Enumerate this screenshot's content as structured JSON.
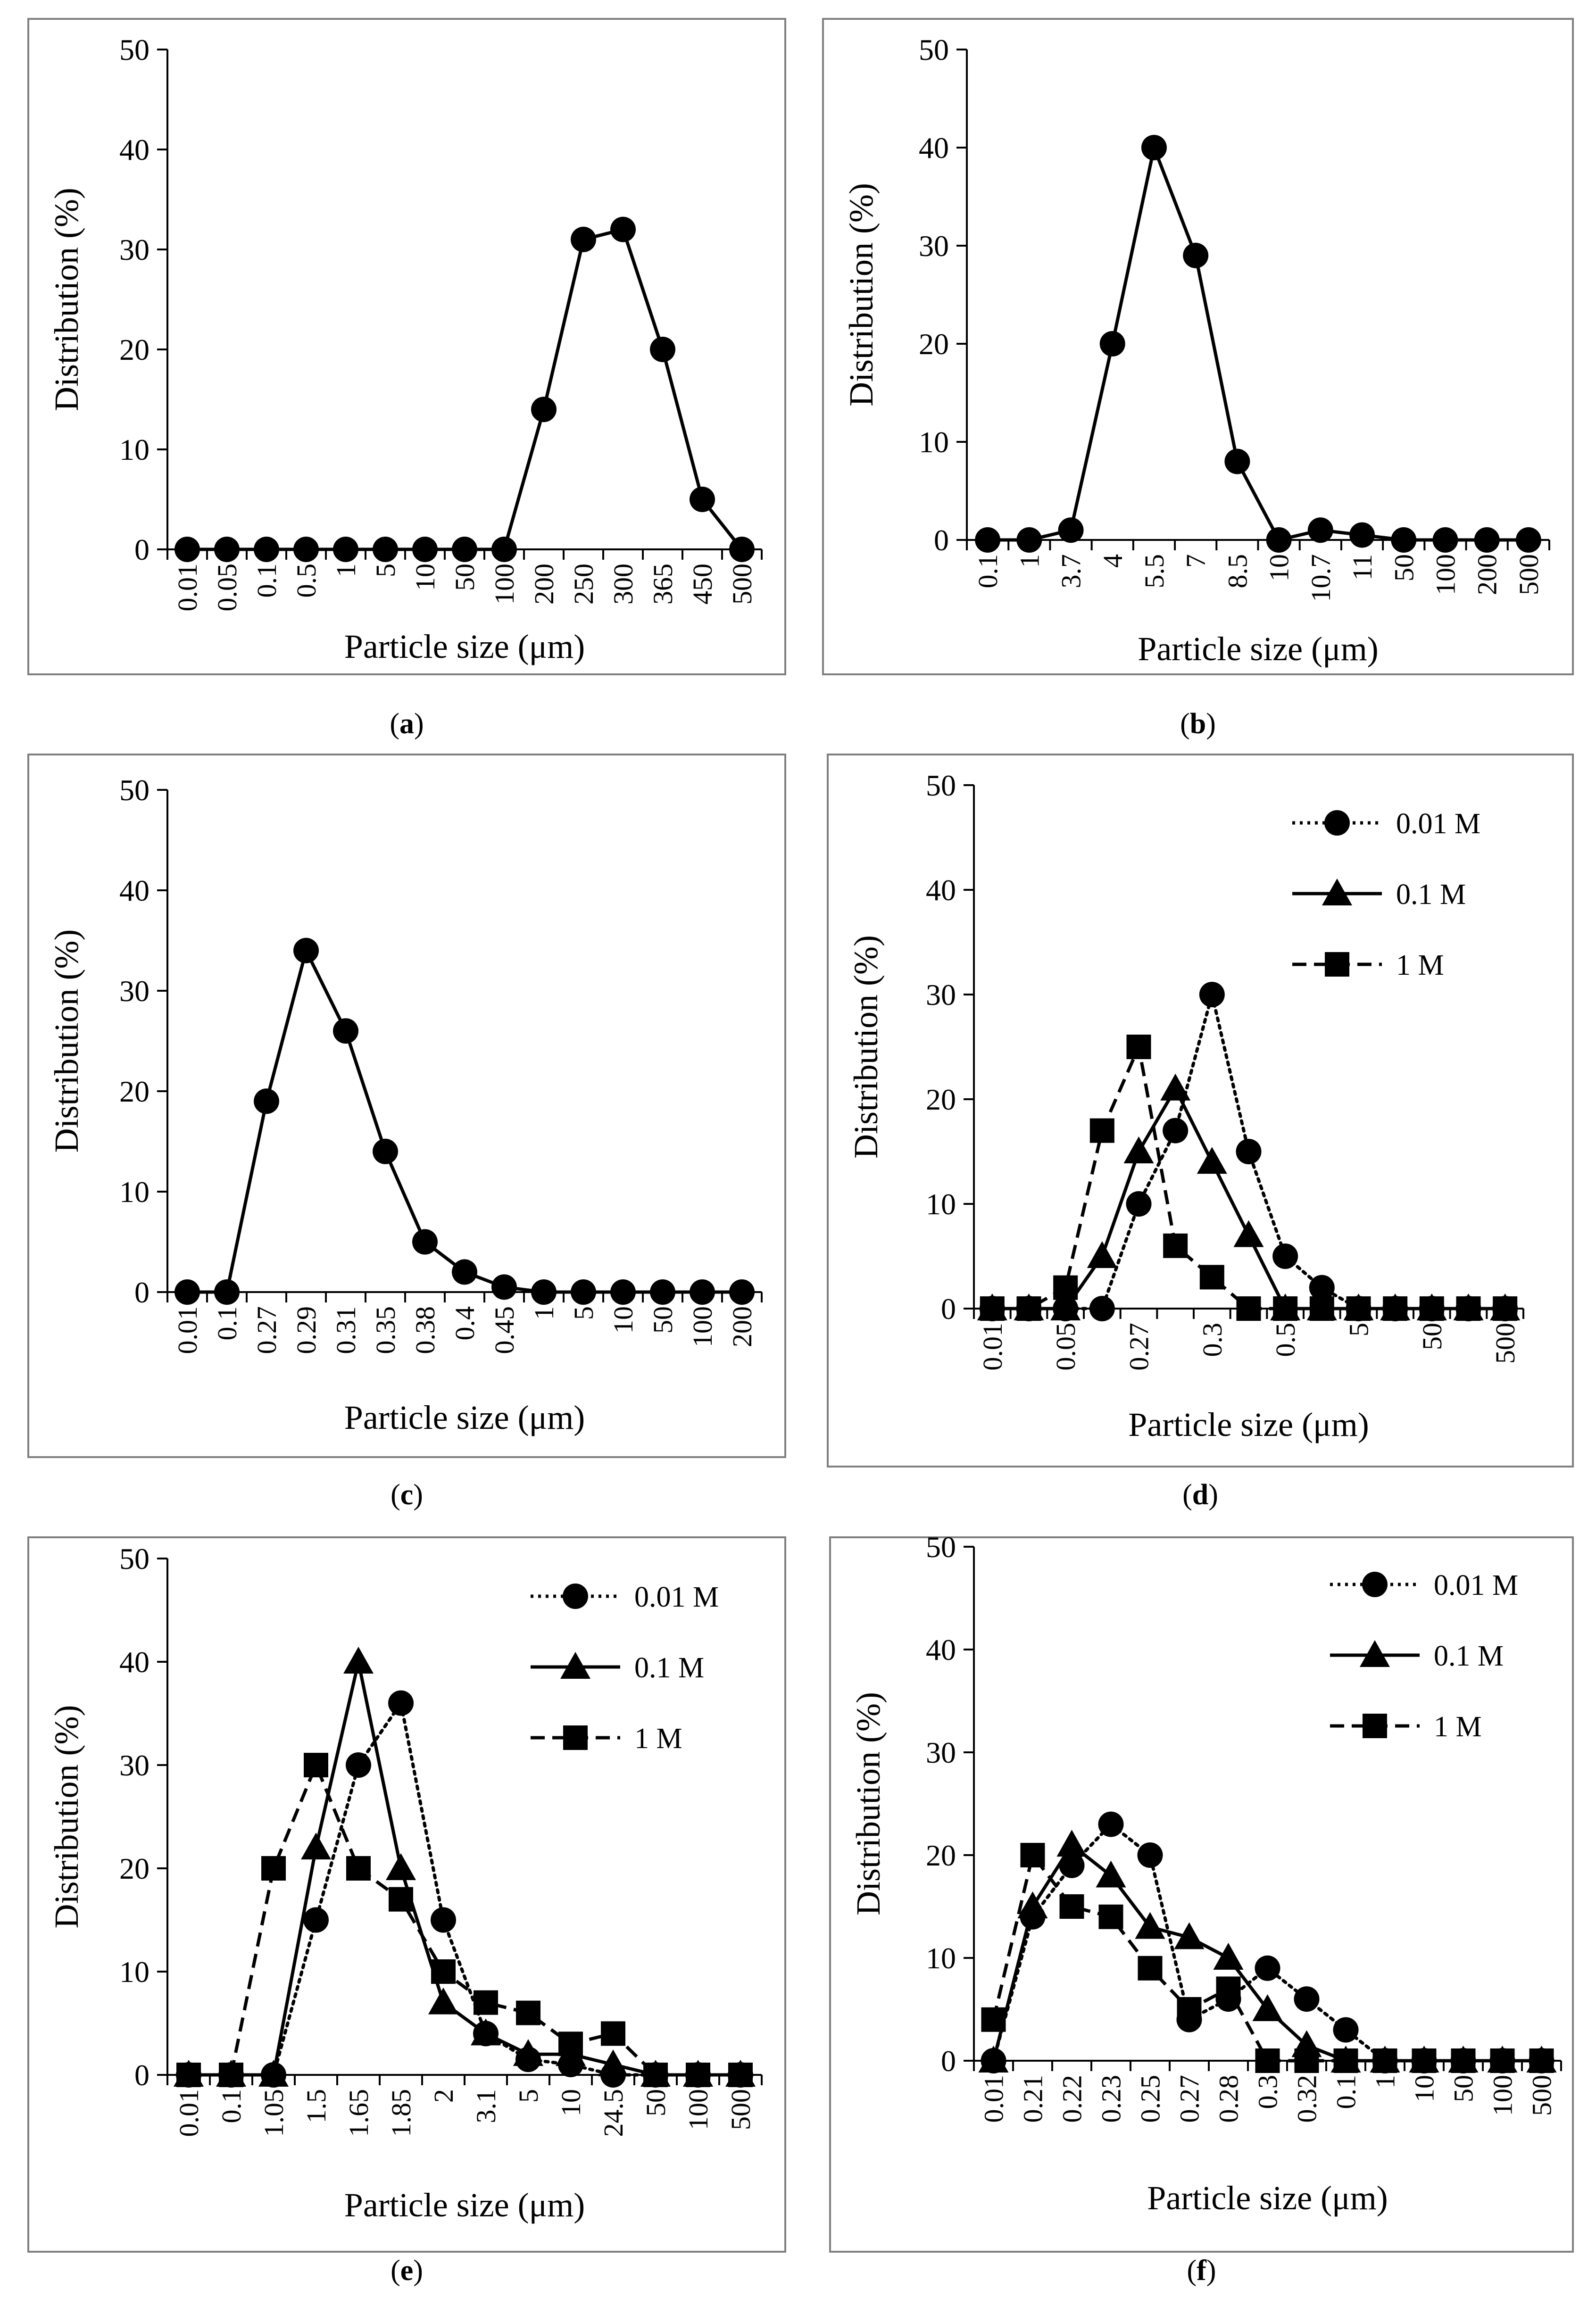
{
  "chart_data": [
    {
      "id": "a",
      "type": "line",
      "caption_label": "a",
      "xlabel": "Particle size (μm)",
      "ylabel": "Distribution (%)",
      "ylim": [
        0,
        50
      ],
      "y_ticks": [
        "0",
        "10",
        "20",
        "30",
        "40",
        "50"
      ],
      "x_ticks": [
        "0.01",
        "0.05",
        "0.1",
        "0.5",
        "1",
        "5",
        "10",
        "50",
        "100",
        "200",
        "250",
        "300",
        "365",
        "450",
        "500"
      ],
      "legend": null,
      "series": [
        {
          "name": "",
          "marker": "circle",
          "dash": "solid",
          "values": [
            0,
            0,
            0,
            0,
            0,
            0,
            0,
            0,
            0,
            14,
            31,
            32,
            20,
            5,
            0
          ]
        }
      ]
    },
    {
      "id": "b",
      "type": "line",
      "caption_label": "b",
      "xlabel": "Particle size (μm)",
      "ylabel": "Distribution (%)",
      "ylim": [
        0,
        50
      ],
      "y_ticks": [
        "0",
        "10",
        "20",
        "30",
        "40",
        "50"
      ],
      "x_ticks": [
        "0.1",
        "1",
        "3.7",
        "4",
        "5.5",
        "7",
        "8.5",
        "10",
        "10.7",
        "11",
        "50",
        "100",
        "200",
        "500"
      ],
      "legend": null,
      "series": [
        {
          "name": "",
          "marker": "circle",
          "dash": "solid",
          "values": [
            0,
            0,
            1,
            20,
            40,
            29,
            8,
            0,
            1,
            0.5,
            0,
            0,
            0,
            0
          ]
        }
      ]
    },
    {
      "id": "c",
      "type": "line",
      "caption_label": "c",
      "xlabel": "Particle size (μm)",
      "ylabel": "Distribution (%)",
      "ylim": [
        0,
        50
      ],
      "y_ticks": [
        "0",
        "10",
        "20",
        "30",
        "40",
        "50"
      ],
      "x_ticks": [
        "0.01",
        "0.1",
        "0.27",
        "0.29",
        "0.31",
        "0.35",
        "0.38",
        "0.4",
        "0.45",
        "1",
        "5",
        "10",
        "50",
        "100",
        "200"
      ],
      "legend": null,
      "series": [
        {
          "name": "",
          "marker": "circle",
          "dash": "solid",
          "values": [
            0,
            0,
            19,
            34,
            26,
            14,
            5,
            2,
            0.5,
            0,
            0,
            0,
            0,
            0,
            0
          ]
        }
      ]
    },
    {
      "id": "d",
      "type": "line",
      "caption_label": "d",
      "xlabel": "Particle size (μm)",
      "ylabel": "Distribution (%)",
      "ylim": [
        0,
        50
      ],
      "y_ticks": [
        "0",
        "10",
        "20",
        "30",
        "40",
        "50"
      ],
      "x_ticks": [
        "0.01",
        "",
        "0.05",
        "",
        "0.27",
        "",
        "0.3",
        "",
        "0.5",
        "",
        "5",
        "",
        "50",
        "",
        "500"
      ],
      "legend": "top-right",
      "series": [
        {
          "name": "0.01 M",
          "marker": "circle",
          "dash": "dotted",
          "values": [
            0,
            0,
            0,
            0,
            10,
            17,
            30,
            15,
            5,
            2,
            0,
            0,
            0,
            0,
            0
          ]
        },
        {
          "name": "0.1 M",
          "marker": "triangle",
          "dash": "solid",
          "values": [
            0,
            0,
            0,
            5,
            15,
            21,
            14,
            7,
            0,
            0,
            0,
            0,
            0,
            0,
            0
          ]
        },
        {
          "name": "1 M",
          "marker": "square",
          "dash": "dashed",
          "values": [
            0,
            0,
            2,
            17,
            25,
            6,
            3,
            0,
            0,
            0,
            0,
            0,
            0,
            0,
            0
          ]
        }
      ]
    },
    {
      "id": "e",
      "type": "line",
      "caption_label": "e",
      "xlabel": "Particle size (μm)",
      "ylabel": "Distribution (%)",
      "ylim": [
        0,
        50
      ],
      "y_ticks": [
        "0",
        "10",
        "20",
        "30",
        "40",
        "50"
      ],
      "x_ticks": [
        "0.01",
        "0.1",
        "1.05",
        "1.5",
        "1.65",
        "1.85",
        "2",
        "3.1",
        "5",
        "10",
        "24.5",
        "50",
        "100",
        "500"
      ],
      "legend": "top-right",
      "series": [
        {
          "name": "0.01 M",
          "marker": "circle",
          "dash": "dotted",
          "values": [
            0,
            0,
            0,
            15,
            30,
            36,
            15,
            4,
            1.5,
            1,
            0,
            0,
            0,
            0
          ]
        },
        {
          "name": "0.1 M",
          "marker": "triangle",
          "dash": "solid",
          "values": [
            0,
            0,
            0,
            22,
            40,
            20,
            7,
            4,
            2,
            2,
            1,
            0,
            0,
            0
          ]
        },
        {
          "name": "1 M",
          "marker": "square",
          "dash": "dashed",
          "values": [
            0,
            0,
            20,
            30,
            20,
            17,
            10,
            7,
            6,
            3,
            4,
            0,
            0,
            0
          ]
        }
      ]
    },
    {
      "id": "f",
      "type": "line",
      "caption_label": "f",
      "xlabel": "Particle size (μm)",
      "ylabel": "Distribution (%)",
      "ylim": [
        0,
        50
      ],
      "y_ticks": [
        "0",
        "10",
        "20",
        "30",
        "40",
        "50"
      ],
      "x_ticks": [
        "0.01",
        "0.21",
        "0.22",
        "0.23",
        "0.25",
        "0.27",
        "0.28",
        "0.3",
        "0.32",
        "0.1",
        "1",
        "10",
        "50",
        "100",
        "500"
      ],
      "legend": "top-right",
      "series": [
        {
          "name": "0.01 M",
          "marker": "circle",
          "dash": "dotted",
          "values": [
            0,
            14,
            19,
            23,
            20,
            4,
            6,
            9,
            6,
            3,
            0,
            0,
            0,
            0,
            0
          ]
        },
        {
          "name": "0.1 M",
          "marker": "triangle",
          "dash": "solid",
          "values": [
            0,
            15,
            21,
            18,
            13,
            12,
            10,
            5,
            1.5,
            0,
            0,
            0,
            0,
            0,
            0
          ]
        },
        {
          "name": "1 M",
          "marker": "square",
          "dash": "dashed",
          "values": [
            4,
            20,
            15,
            14,
            9,
            5,
            7,
            0,
            0,
            0,
            0,
            0,
            0,
            0,
            0
          ]
        }
      ]
    }
  ]
}
